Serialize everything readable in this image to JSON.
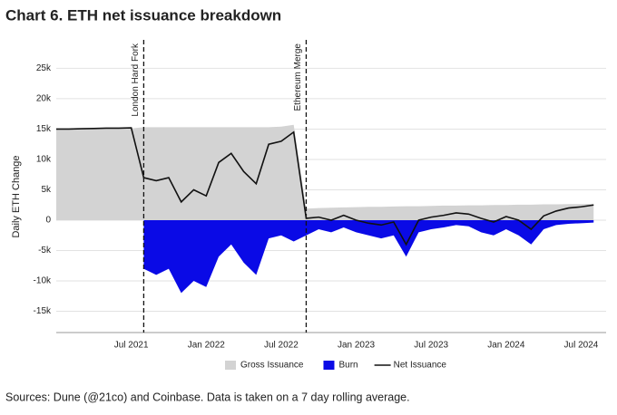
{
  "chart_data": {
    "type": "area",
    "title": "Chart 6. ETH net issuance breakdown",
    "y_label": "Daily ETH Change",
    "source": "Sources: Dune (@21co) and Coinbase. Data is taken on a 7 day rolling average.",
    "x": [
      "2021-01",
      "2021-02",
      "2021-03",
      "2021-04",
      "2021-05",
      "2021-06",
      "2021-07",
      "2021-08",
      "2021-09",
      "2021-10",
      "2021-11",
      "2021-12",
      "2022-01",
      "2022-02",
      "2022-03",
      "2022-04",
      "2022-05",
      "2022-06",
      "2022-07",
      "2022-08",
      "2022-09",
      "2022-10",
      "2022-11",
      "2022-12",
      "2023-01",
      "2023-02",
      "2023-03",
      "2023-04",
      "2023-05",
      "2023-06",
      "2023-07",
      "2023-08",
      "2023-09",
      "2023-10",
      "2023-11",
      "2023-12",
      "2024-01",
      "2024-02",
      "2024-03",
      "2024-04",
      "2024-05",
      "2024-06",
      "2024-07",
      "2024-08"
    ],
    "series": [
      {
        "name": "Gross Issuance",
        "kind": "area",
        "color": "#d3d3d3",
        "values": [
          15000,
          15000,
          15000,
          15000,
          15050,
          15100,
          15100,
          15300,
          15300,
          15300,
          15300,
          15300,
          15300,
          15300,
          15300,
          15300,
          15300,
          15300,
          15400,
          15700,
          1900,
          2000,
          2050,
          2100,
          2150,
          2200,
          2200,
          2250,
          2300,
          2300,
          2350,
          2400,
          2400,
          2450,
          2450,
          2500,
          2500,
          2550,
          2550,
          2600,
          2600,
          2650,
          2650,
          2700
        ]
      },
      {
        "name": "Burn",
        "kind": "area",
        "color": "#0a0ae6",
        "values": [
          null,
          null,
          null,
          null,
          null,
          null,
          null,
          -8000,
          -9000,
          -8000,
          -12000,
          -10000,
          -11000,
          -6000,
          -4000,
          -7000,
          -9000,
          -3000,
          -2500,
          -3500,
          -2500,
          -1500,
          -2000,
          -1200,
          -2000,
          -2500,
          -3000,
          -2500,
          -6000,
          -2000,
          -1500,
          -1200,
          -800,
          -1000,
          -2000,
          -2500,
          -1500,
          -2500,
          -4000,
          -1500,
          -800,
          -600,
          -500,
          -400
        ]
      },
      {
        "name": "Net Issuance",
        "kind": "line",
        "color": "#111111",
        "values": [
          15000,
          15000,
          15050,
          15100,
          15150,
          15150,
          15200,
          7000,
          6500,
          7000,
          3000,
          5000,
          4000,
          9500,
          11000,
          8000,
          6000,
          12500,
          13000,
          14500,
          300,
          500,
          0,
          800,
          0,
          -500,
          -800,
          -300,
          -4000,
          0,
          500,
          800,
          1200,
          1000,
          300,
          -300,
          600,
          0,
          -1500,
          700,
          1500,
          2000,
          2200,
          2500
        ]
      }
    ],
    "xlim": [
      "2021-01",
      "2024-09"
    ],
    "xticks": [
      {
        "value": "2021-07",
        "label": "Jul 2021"
      },
      {
        "value": "2022-01",
        "label": "Jan 2022"
      },
      {
        "value": "2022-07",
        "label": "Jul 2022"
      },
      {
        "value": "2023-01",
        "label": "Jan 2023"
      },
      {
        "value": "2023-07",
        "label": "Jul 2023"
      },
      {
        "value": "2024-01",
        "label": "Jan 2024"
      },
      {
        "value": "2024-07",
        "label": "Jul 2024"
      }
    ],
    "ylim": [
      -18500,
      27000
    ],
    "yticks": [
      {
        "value": -15000,
        "label": "-15k"
      },
      {
        "value": -10000,
        "label": "-10k"
      },
      {
        "value": -5000,
        "label": "-5k"
      },
      0,
      {
        "value": 5000,
        "label": "5k"
      },
      {
        "value": 10000,
        "label": "10k"
      },
      {
        "value": 15000,
        "label": "15k"
      },
      {
        "value": 20000,
        "label": "20k"
      },
      {
        "value": 25000,
        "label": "25k"
      }
    ],
    "grid": true,
    "events": [
      {
        "x": "2021-08",
        "label": "London Hard Fork"
      },
      {
        "x": "2022-09",
        "label": "Ethereum Merge"
      }
    ]
  }
}
